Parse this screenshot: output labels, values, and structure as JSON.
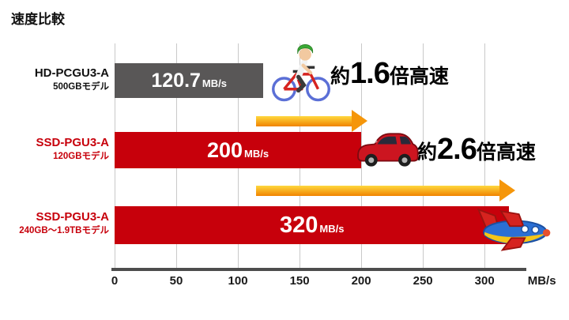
{
  "title": "速度比較",
  "chart_data": {
    "type": "bar",
    "orientation": "horizontal",
    "title": "速度比較",
    "xlabel": "MB/s",
    "xlim": [
      0,
      330
    ],
    "ticks": [
      0,
      50,
      100,
      150,
      200,
      250,
      300
    ],
    "axis_unit_label": "MB/s",
    "grid": true,
    "rows": [
      {
        "model": "HD-PCGU3-A",
        "submodel": "500GBモデル",
        "value": 120.7,
        "value_label": "120.7",
        "value_unit": "MB/s",
        "bar_color": "#595757",
        "label_color": "#111111",
        "icon": "bicycle-icon"
      },
      {
        "model": "SSD-PGU3-A",
        "submodel": "120GBモデル",
        "value": 200,
        "value_label": "200",
        "value_unit": "MB/s",
        "bar_color": "#c7000b",
        "label_color": "#c7000b",
        "icon": "car-icon"
      },
      {
        "model": "SSD-PGU3-A",
        "submodel": "240GB〜1.9TBモデル",
        "value": 320,
        "value_label": "320",
        "value_unit": "MB/s",
        "bar_color": "#c7000b",
        "label_color": "#c7000b",
        "icon": "airplane-icon"
      }
    ],
    "annotations": [
      {
        "prefix": "約",
        "number": "1.6",
        "suffix": "倍高速"
      },
      {
        "prefix": "約",
        "number": "2.6",
        "suffix": "倍高速"
      }
    ],
    "arrows": [
      {
        "from": 115,
        "to": 205
      },
      {
        "from": 115,
        "to": 325
      }
    ],
    "colors": {
      "gray_bar": "#595757",
      "red_bar": "#c7000b",
      "arrow_gradient_start": "#ffd83e",
      "arrow_gradient_end": "#f08300",
      "axis": "#4d4d4d",
      "gridline": "#c9c9c9"
    }
  }
}
